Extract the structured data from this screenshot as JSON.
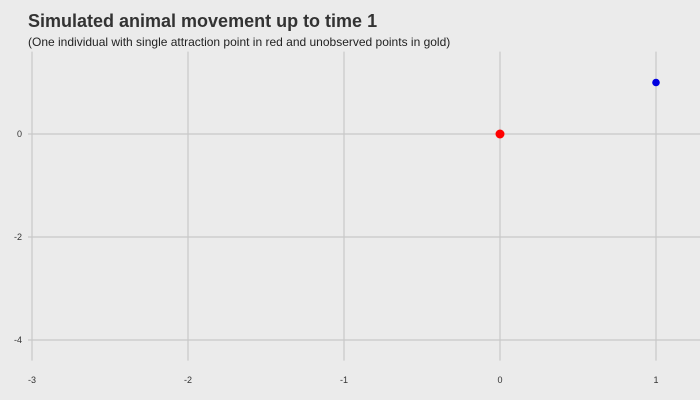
{
  "chart_data": {
    "type": "scatter",
    "title": "Simulated animal movement up to time 1",
    "subtitle": "(One individual with single attraction point in red and unobserved points in gold)",
    "xlabel": "",
    "ylabel": "",
    "xlim": [
      -3,
      1.2
    ],
    "ylim": [
      -4.4,
      1.6
    ],
    "xticks": [
      -3,
      -2,
      -1,
      0,
      1
    ],
    "yticks": [
      0,
      -2,
      -4
    ],
    "grid": true,
    "legend": "none",
    "series": [
      {
        "role": "attraction point",
        "color": "#ff0000",
        "points": [
          {
            "x": 0,
            "y": 0
          }
        ]
      },
      {
        "role": "animal position",
        "color": "#0000e0",
        "points": [
          {
            "x": 1,
            "y": 1
          }
        ]
      }
    ]
  }
}
